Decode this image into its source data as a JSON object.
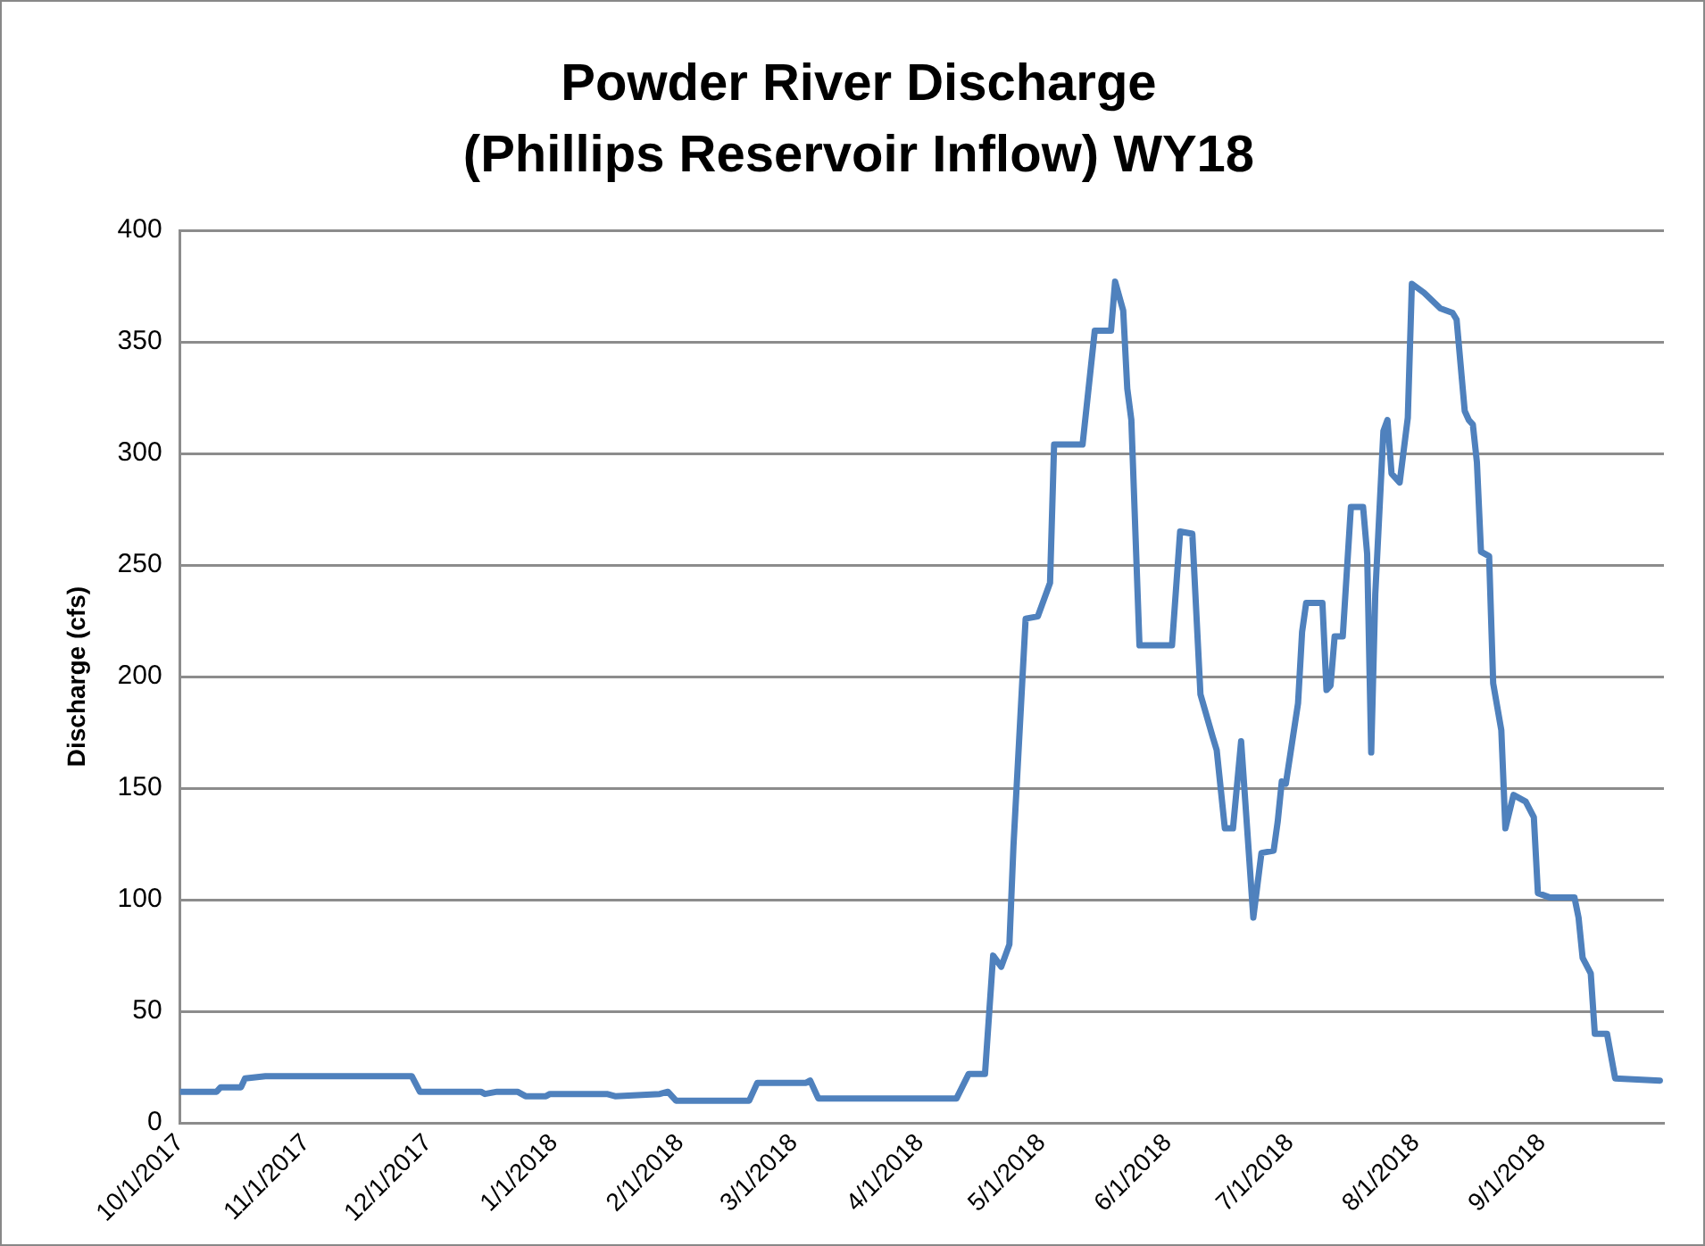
{
  "chart_data": {
    "type": "line",
    "title": "Powder River Discharge\n(Phillips Reservoir Inflow) WY18",
    "ylabel": "Discharge (cfs)",
    "xlim": [
      "2017-10-01",
      "2018-10-01"
    ],
    "xticks": [
      {
        "value": "2017-10-01",
        "label": "10/1/2017"
      },
      {
        "value": "2017-11-01",
        "label": "11/1/2017"
      },
      {
        "value": "2017-12-01",
        "label": "12/1/2017"
      },
      {
        "value": "2018-01-01",
        "label": "1/1/2018"
      },
      {
        "value": "2018-02-01",
        "label": "2/1/2018"
      },
      {
        "value": "2018-03-01",
        "label": "3/1/2018"
      },
      {
        "value": "2018-04-01",
        "label": "4/1/2018"
      },
      {
        "value": "2018-05-01",
        "label": "5/1/2018"
      },
      {
        "value": "2018-06-01",
        "label": "6/1/2018"
      },
      {
        "value": "2018-07-01",
        "label": "7/1/2018"
      },
      {
        "value": "2018-08-01",
        "label": "8/1/2018"
      },
      {
        "value": "2018-09-01",
        "label": "9/1/2018"
      }
    ],
    "ylim": [
      0,
      400
    ],
    "yticks": [
      0,
      50,
      100,
      150,
      200,
      250,
      300,
      350,
      400
    ],
    "grid": "y",
    "legend": false,
    "marker": "none",
    "line_style": "solid",
    "x": [
      "2017-10-01",
      "2017-10-10",
      "2017-10-11",
      "2017-10-16",
      "2017-10-17",
      "2017-10-22",
      "2017-11-27",
      "2017-11-29",
      "2017-12-14",
      "2017-12-15",
      "2017-12-18",
      "2017-12-23",
      "2017-12-25",
      "2017-12-30",
      "2017-12-31",
      "2018-01-14",
      "2018-01-16",
      "2018-01-27",
      "2018-01-29",
      "2018-01-31",
      "2018-02-18",
      "2018-02-20",
      "2018-03-04",
      "2018-03-05",
      "2018-03-07",
      "2018-04-10",
      "2018-04-13",
      "2018-04-17",
      "2018-04-19",
      "2018-04-21",
      "2018-04-23",
      "2018-04-24",
      "2018-04-27",
      "2018-04-30",
      "2018-05-03",
      "2018-05-04",
      "2018-05-11",
      "2018-05-14",
      "2018-05-18",
      "2018-05-19",
      "2018-05-21",
      "2018-05-22",
      "2018-05-23",
      "2018-05-25",
      "2018-06-02",
      "2018-06-04",
      "2018-06-07",
      "2018-06-09",
      "2018-06-12",
      "2018-06-13",
      "2018-06-15",
      "2018-06-17",
      "2018-06-19",
      "2018-06-22",
      "2018-06-24",
      "2018-06-27",
      "2018-06-28",
      "2018-06-29",
      "2018-06-30",
      "2018-07-03",
      "2018-07-04",
      "2018-07-05",
      "2018-07-09",
      "2018-07-10",
      "2018-07-11",
      "2018-07-12",
      "2018-07-14",
      "2018-07-16",
      "2018-07-19",
      "2018-07-20",
      "2018-07-21",
      "2018-07-22",
      "2018-07-24",
      "2018-07-25",
      "2018-07-26",
      "2018-07-28",
      "2018-07-30",
      "2018-07-31",
      "2018-08-03",
      "2018-08-07",
      "2018-08-10",
      "2018-08-11",
      "2018-08-13",
      "2018-08-14",
      "2018-08-15",
      "2018-08-16",
      "2018-08-17",
      "2018-08-19",
      "2018-08-20",
      "2018-08-22",
      "2018-08-23",
      "2018-08-25",
      "2018-08-28",
      "2018-08-30",
      "2018-08-31",
      "2018-09-03",
      "2018-09-09",
      "2018-09-10",
      "2018-09-11",
      "2018-09-13",
      "2018-09-14",
      "2018-09-17",
      "2018-09-19",
      "2018-09-30"
    ],
    "series": [
      {
        "color": "#4f81bd",
        "values": [
          14,
          14,
          16,
          16,
          20,
          21,
          21,
          14,
          14,
          13,
          14,
          14,
          12,
          12,
          13,
          13,
          12,
          13,
          14,
          10,
          10,
          18,
          18,
          19,
          11,
          11,
          22,
          22,
          75,
          70,
          80,
          124,
          226,
          227,
          242,
          304,
          304,
          355,
          355,
          377,
          364,
          329,
          315,
          214,
          214,
          265,
          264,
          192,
          173,
          167,
          132,
          132,
          171,
          92,
          121,
          122,
          135,
          153,
          152,
          188,
          220,
          233,
          233,
          194,
          196,
          218,
          218,
          276,
          276,
          255,
          166,
          237,
          310,
          315,
          291,
          287,
          316,
          376,
          372,
          365,
          363,
          360,
          319,
          315,
          313,
          296,
          256,
          254,
          197,
          176,
          132,
          147,
          144,
          137,
          103,
          101,
          101,
          92,
          74,
          67,
          40,
          40,
          20,
          19
        ]
      }
    ]
  }
}
